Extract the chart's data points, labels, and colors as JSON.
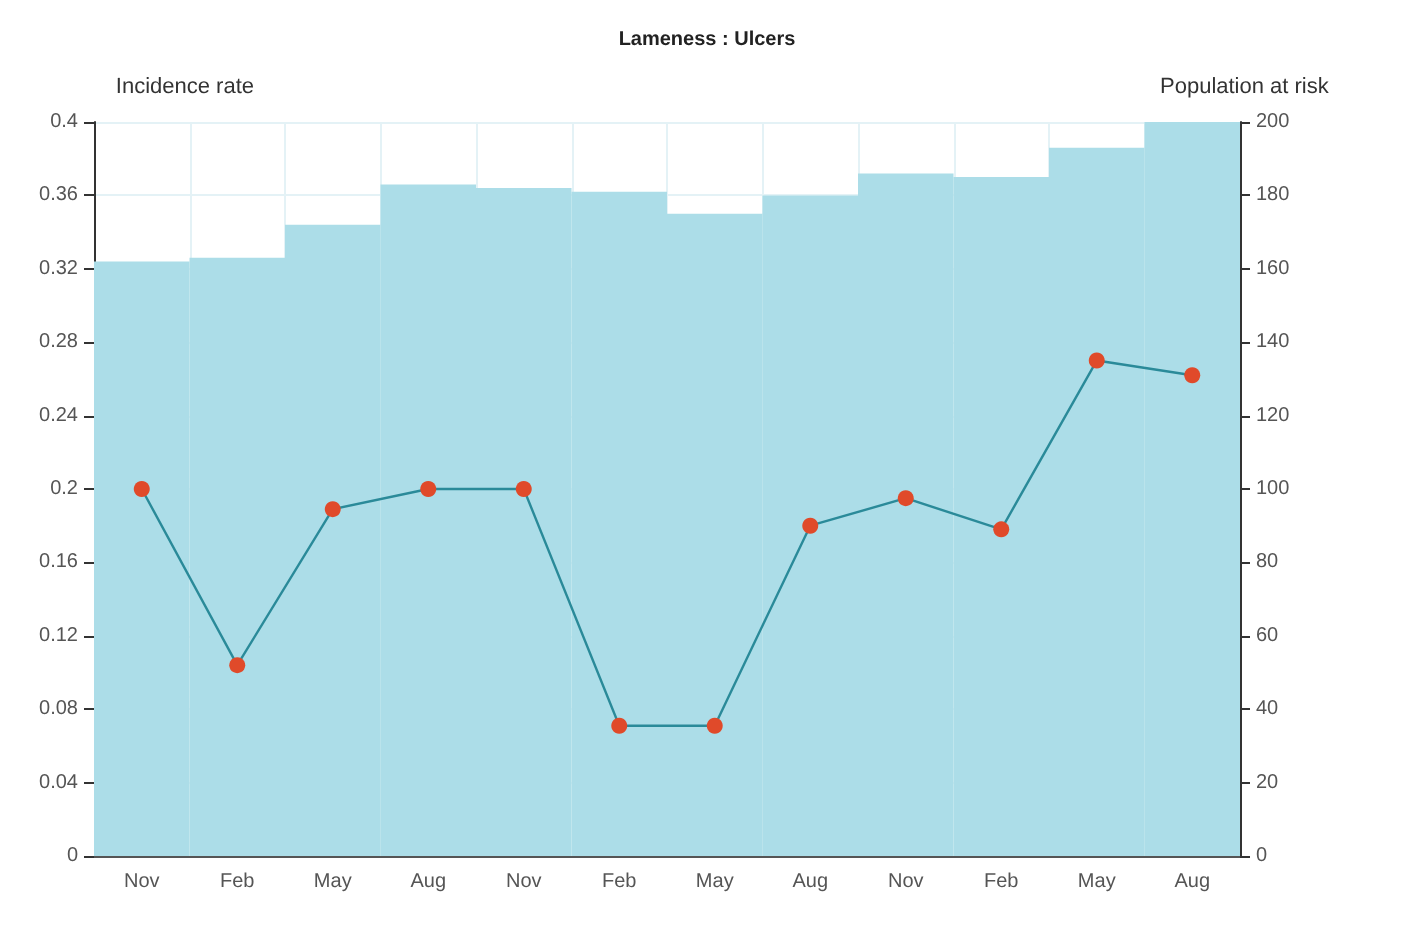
{
  "chart_data": {
    "type": "line",
    "title": "Lameness : Ulcers",
    "ylabel": "Incidence rate",
    "y2label": "Population at risk",
    "categories": [
      "Nov",
      "Feb",
      "May",
      "Aug",
      "Nov",
      "Feb",
      "May",
      "Aug",
      "Nov",
      "Feb",
      "May",
      "Aug"
    ],
    "series": [
      {
        "type": "bar",
        "axis": "y2",
        "color": "#acdde8",
        "values": [
          162,
          163,
          172,
          183,
          182,
          181,
          175,
          180,
          186,
          185,
          193,
          200
        ]
      },
      {
        "color": "#2a8a99",
        "colors": [
          "#e04a2a",
          "#e04a2a",
          "#e04a2a",
          "#e04a2a",
          "#e04a2a",
          "#e04a2a",
          "#e04a2a",
          "#e04a2a",
          "#e04a2a",
          "#e04a2a",
          "#e04a2a",
          "#e04a2a"
        ],
        "values": [
          0.2,
          0.104,
          0.189,
          0.2,
          0.2,
          0.071,
          0.071,
          0.18,
          0.195,
          0.178,
          0.27,
          0.262
        ]
      }
    ],
    "ylim": [
      0,
      0.4
    ],
    "yticks": [
      0,
      0.04,
      0.08,
      0.12,
      0.16,
      0.2,
      0.24,
      0.28,
      0.32,
      0.36,
      0.4
    ],
    "y2lim": [
      0,
      200
    ],
    "y2ticks": [
      0,
      20,
      40,
      60,
      80,
      100,
      120,
      140,
      160,
      180,
      200
    ],
    "grid": true,
    "marker": "circle",
    "line_style": "solid"
  }
}
